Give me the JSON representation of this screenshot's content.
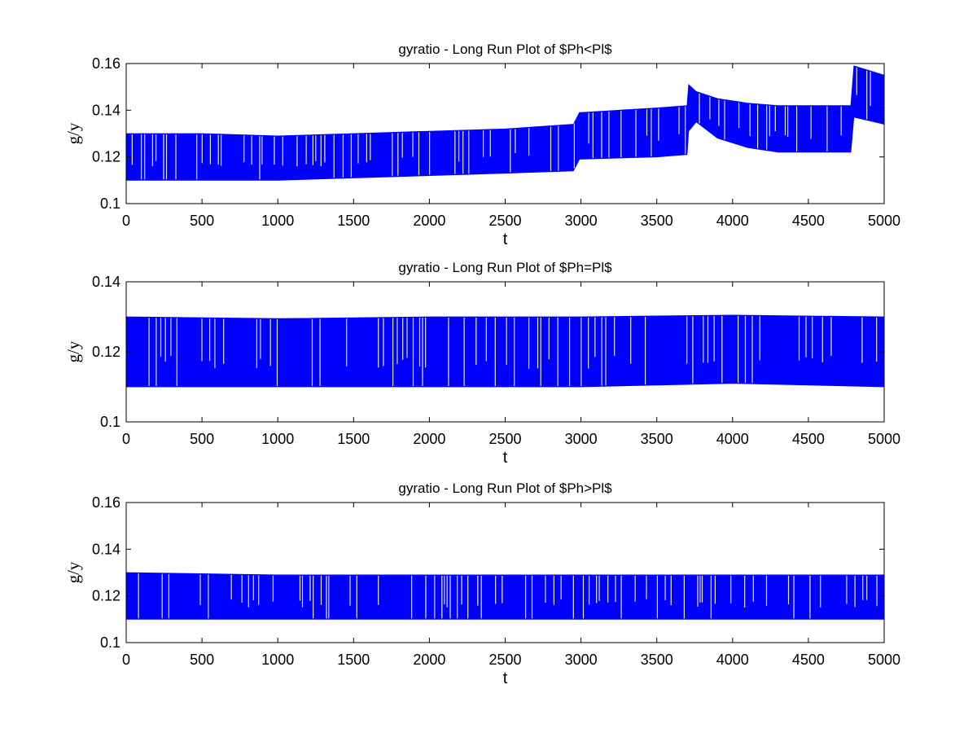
{
  "figure": {
    "background": "#ffffff",
    "series_color": "#0000ff"
  },
  "chart_data": [
    {
      "type": "area",
      "title": "gyratio - Long Run Plot of $Ph<Pl$",
      "xlabel": "t",
      "ylabel": "g/y",
      "xlim": [
        0,
        5000
      ],
      "ylim": [
        0.1,
        0.16
      ],
      "xticks": [
        0,
        500,
        1000,
        1500,
        2000,
        2500,
        3000,
        3500,
        4000,
        4500,
        5000
      ],
      "yticks": [
        0.1,
        0.12,
        0.14,
        0.16
      ],
      "ytick_labels": [
        "0.1",
        "0.12",
        "0.14",
        "0.16"
      ],
      "grid": false,
      "series": [
        {
          "color": "#0000ff",
          "x": [
            0,
            500,
            1000,
            1500,
            2000,
            2500,
            2950,
            2990,
            3500,
            3700,
            3710,
            3760,
            3900,
            4100,
            4300,
            4500,
            4780,
            4800,
            5000
          ],
          "lower": [
            0.11,
            0.11,
            0.11,
            0.111,
            0.112,
            0.113,
            0.114,
            0.119,
            0.12,
            0.121,
            0.131,
            0.135,
            0.128,
            0.124,
            0.122,
            0.122,
            0.122,
            0.137,
            0.134
          ],
          "upper": [
            0.13,
            0.13,
            0.129,
            0.13,
            0.131,
            0.132,
            0.134,
            0.139,
            0.141,
            0.142,
            0.151,
            0.148,
            0.145,
            0.143,
            0.142,
            0.142,
            0.142,
            0.159,
            0.155
          ]
        }
      ]
    },
    {
      "type": "area",
      "title": "gyratio - Long Run Plot of $Ph=Pl$",
      "xlabel": "t",
      "ylabel": "g/y",
      "xlim": [
        0,
        5000
      ],
      "ylim": [
        0.1,
        0.14
      ],
      "xticks": [
        0,
        500,
        1000,
        1500,
        2000,
        2500,
        3000,
        3500,
        4000,
        4500,
        5000
      ],
      "yticks": [
        0.1,
        0.12,
        0.14
      ],
      "ytick_labels": [
        "0.1",
        "0.12",
        "0.14"
      ],
      "grid": false,
      "series": [
        {
          "color": "#0000ff",
          "x": [
            0,
            1000,
            2000,
            3000,
            4000,
            5000
          ],
          "lower": [
            0.11,
            0.11,
            0.11,
            0.11,
            0.111,
            0.11
          ],
          "upper": [
            0.13,
            0.1295,
            0.13,
            0.13,
            0.1305,
            0.13
          ]
        }
      ]
    },
    {
      "type": "area",
      "title": "gyratio - Long Run Plot of $Ph>Pl$",
      "xlabel": "t",
      "ylabel": "g/y",
      "xlim": [
        0,
        5000
      ],
      "ylim": [
        0.1,
        0.16
      ],
      "xticks": [
        0,
        500,
        1000,
        1500,
        2000,
        2500,
        3000,
        3500,
        4000,
        4500,
        5000
      ],
      "yticks": [
        0.1,
        0.12,
        0.14,
        0.16
      ],
      "ytick_labels": [
        "0.1",
        "0.12",
        "0.14",
        "0.16"
      ],
      "grid": false,
      "series": [
        {
          "color": "#0000ff",
          "x": [
            0,
            1000,
            2000,
            3000,
            4000,
            5000
          ],
          "lower": [
            0.11,
            0.11,
            0.11,
            0.11,
            0.11,
            0.11
          ],
          "upper": [
            0.13,
            0.129,
            0.129,
            0.129,
            0.129,
            0.129
          ]
        }
      ]
    }
  ]
}
